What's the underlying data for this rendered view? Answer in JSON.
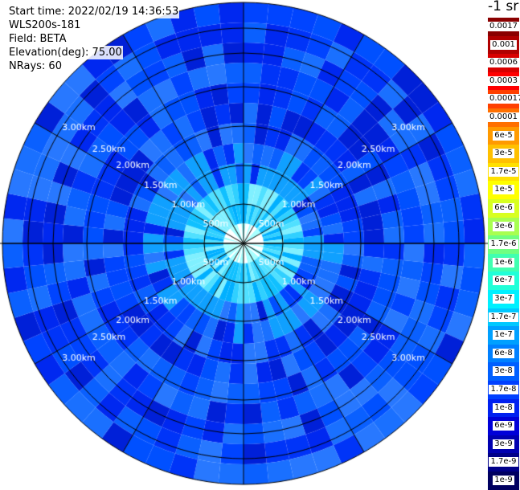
{
  "header": {
    "start_time": "Start time: 2022/02/19 14:36:53",
    "instrument": "WLS200s-181",
    "field": "Field: BETA",
    "elevation": "Elevation(deg): 75.00",
    "nrays": "NRays: 60"
  },
  "colorbar": {
    "units": "-1 sr",
    "labels": [
      "0.0017",
      "0.001",
      "0.0006",
      "0.0003",
      "0.00017",
      "0.0001",
      "6e-5",
      "3e-5",
      "1.7e-5",
      "1e-5",
      "6e-6",
      "3e-6",
      "1.7e-6",
      "1e-6",
      "6e-7",
      "3e-7",
      "1.7e-7",
      "1e-7",
      "6e-8",
      "3e-8",
      "1.7e-8",
      "1e-8",
      "6e-9",
      "3e-9",
      "1.7e-9",
      "1e-9"
    ],
    "colors": [
      "#8a0000",
      "#b00000",
      "#d80000",
      "#ff0000",
      "#ff4000",
      "#ff7000",
      "#ff9a00",
      "#ffc000",
      "#ffe000",
      "#ffff00",
      "#d8ff20",
      "#a8ff50",
      "#70ff80",
      "#40ffb0",
      "#20ffd8",
      "#00f0ff",
      "#00c8ff",
      "#00a0ff",
      "#0080ff",
      "#0060ff",
      "#0040ff",
      "#0020f0",
      "#0000d8",
      "#0000b0",
      "#000088",
      "#000060"
    ]
  },
  "range_rings": {
    "labels": [
      "500m",
      "1.00km",
      "1.50km",
      "2.00km",
      "2.50km",
      "3.00km"
    ]
  },
  "radar": {
    "nrays": 60,
    "ngates": 12
  }
}
